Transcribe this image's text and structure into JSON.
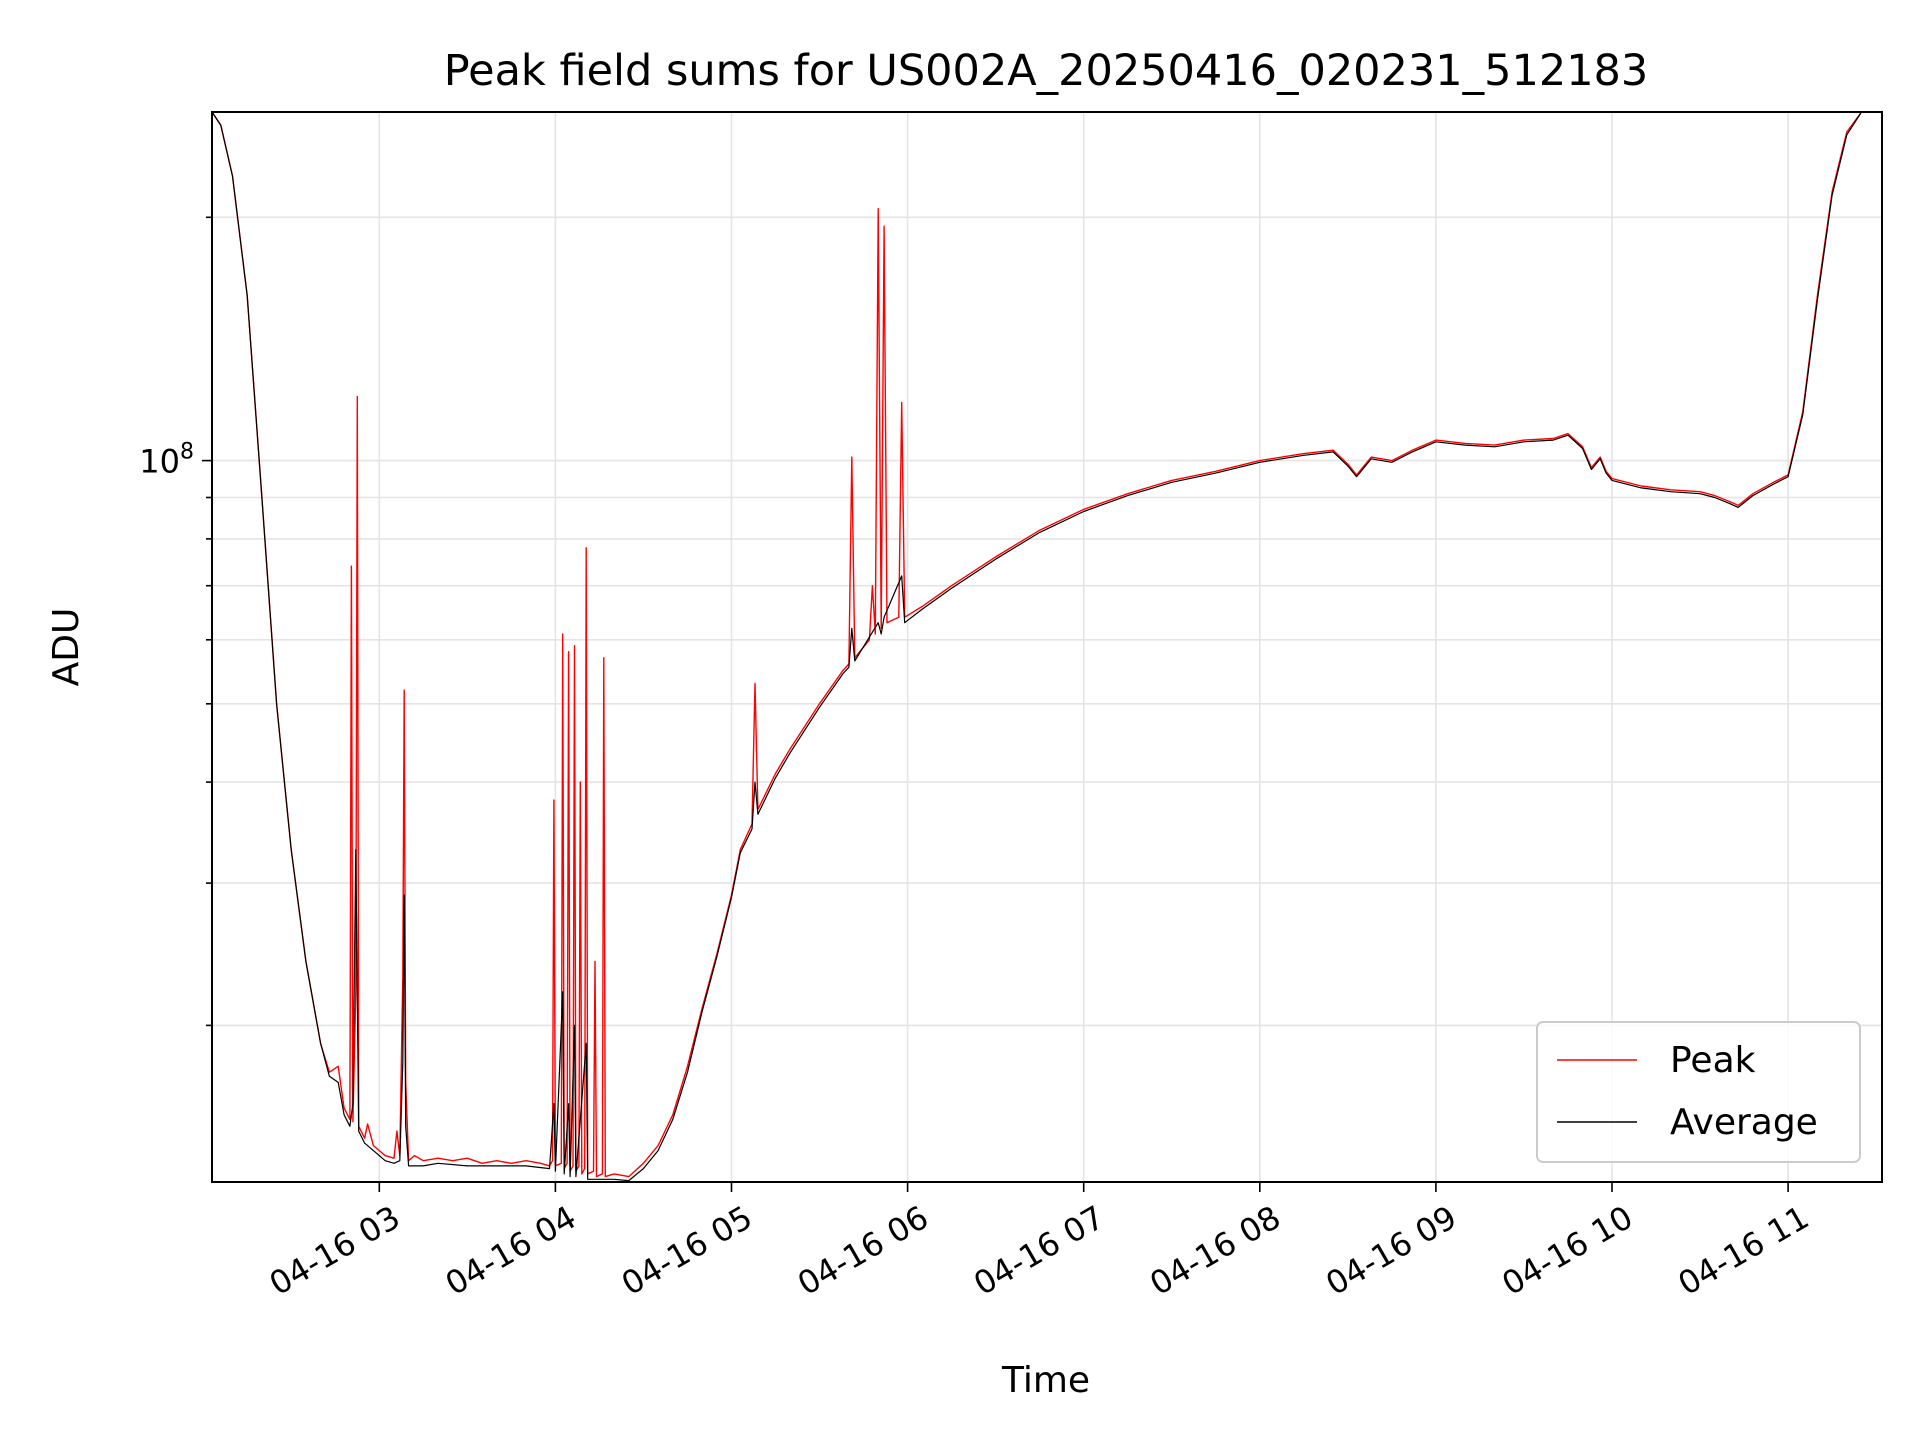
{
  "chart_data": {
    "type": "line",
    "title": "Peak field sums for US002A_20250416_020231_512183",
    "xlabel": "Time",
    "ylabel": "ADU",
    "y_scale": "log",
    "y_tick_label_base": "10",
    "y_tick_label_exp": "8",
    "y_major_tick": 100000000,
    "ylim": [
      12800000,
      270000000
    ],
    "xlim": [
      "2025-04-16 02:03",
      "2025-04-16 11:32"
    ],
    "x_ticks": [
      {
        "time": "2025-04-16 03:00",
        "label": "04-16 03"
      },
      {
        "time": "2025-04-16 04:00",
        "label": "04-16 04"
      },
      {
        "time": "2025-04-16 05:00",
        "label": "04-16 05"
      },
      {
        "time": "2025-04-16 06:00",
        "label": "04-16 06"
      },
      {
        "time": "2025-04-16 07:00",
        "label": "04-16 07"
      },
      {
        "time": "2025-04-16 08:00",
        "label": "04-16 08"
      },
      {
        "time": "2025-04-16 09:00",
        "label": "04-16 09"
      },
      {
        "time": "2025-04-16 10:00",
        "label": "04-16 10"
      },
      {
        "time": "2025-04-16 11:00",
        "label": "04-16 11"
      }
    ],
    "grid": true,
    "legend_position": "lower-right",
    "series": [
      {
        "name": "Peak",
        "color": "#ff0000",
        "points": [
          [
            "02:03",
            270000000
          ],
          [
            "02:06",
            260000000
          ],
          [
            "02:10",
            225000000
          ],
          [
            "02:15",
            160000000
          ],
          [
            "02:20",
            90000000
          ],
          [
            "02:25",
            50000000
          ],
          [
            "02:30",
            33000000
          ],
          [
            "02:35",
            24000000
          ],
          [
            "02:40",
            19000000
          ],
          [
            "02:43",
            17500000
          ],
          [
            "02:46",
            17800000
          ],
          [
            "02:48",
            15800000
          ],
          [
            "02:50",
            15300000
          ],
          [
            "02:50.5",
            74000000
          ],
          [
            "02:51",
            15200000
          ],
          [
            "02:52",
            22000000
          ],
          [
            "02:52.5",
            120000000
          ],
          [
            "02:53",
            15000000
          ],
          [
            "02:55",
            14500000
          ],
          [
            "02:56",
            15100000
          ],
          [
            "02:58",
            14200000
          ],
          [
            "03:02",
            13800000
          ],
          [
            "03:05",
            13700000
          ],
          [
            "03:06",
            14800000
          ],
          [
            "03:07",
            13800000
          ],
          [
            "03:08",
            23000000
          ],
          [
            "03:08.5",
            52000000
          ],
          [
            "03:09",
            17000000
          ],
          [
            "03:10",
            13600000
          ],
          [
            "03:12",
            13800000
          ],
          [
            "03:15",
            13600000
          ],
          [
            "03:20",
            13700000
          ],
          [
            "03:25",
            13600000
          ],
          [
            "03:30",
            13700000
          ],
          [
            "03:35",
            13500000
          ],
          [
            "03:40",
            13600000
          ],
          [
            "03:45",
            13500000
          ],
          [
            "03:50",
            13600000
          ],
          [
            "03:55",
            13500000
          ],
          [
            "03:58",
            13400000
          ],
          [
            "03:59",
            13600000
          ],
          [
            "03:59.5",
            38000000
          ],
          [
            "04:00",
            13400000
          ],
          [
            "04:02",
            13500000
          ],
          [
            "04:02.5",
            61000000
          ],
          [
            "04:03",
            13300000
          ],
          [
            "04:04",
            13500000
          ],
          [
            "04:04.5",
            58000000
          ],
          [
            "04:05",
            13200000
          ],
          [
            "04:06",
            13400000
          ],
          [
            "04:06.5",
            59000000
          ],
          [
            "04:07",
            13200000
          ],
          [
            "04:08",
            13400000
          ],
          [
            "04:08.5",
            40000000
          ],
          [
            "04:09",
            13100000
          ],
          [
            "04:10",
            13300000
          ],
          [
            "04:10.5",
            78000000
          ],
          [
            "04:11",
            13100000
          ],
          [
            "04:13",
            13200000
          ],
          [
            "04:13.5",
            24000000
          ],
          [
            "04:14",
            13000000
          ],
          [
            "04:16",
            13100000
          ],
          [
            "04:16.5",
            57000000
          ],
          [
            "04:17",
            13000000
          ],
          [
            "04:20",
            13100000
          ],
          [
            "04:25",
            13000000
          ],
          [
            "04:30",
            13500000
          ],
          [
            "04:35",
            14200000
          ],
          [
            "04:40",
            15500000
          ],
          [
            "04:45",
            17800000
          ],
          [
            "04:50",
            21000000
          ],
          [
            "04:55",
            24500000
          ],
          [
            "05:00",
            29000000
          ],
          [
            "05:03",
            33000000
          ],
          [
            "05:07",
            35500000
          ],
          [
            "05:08",
            53000000
          ],
          [
            "05:09",
            37000000
          ],
          [
            "05:15",
            41000000
          ],
          [
            "05:20",
            44000000
          ],
          [
            "05:30",
            50000000
          ],
          [
            "05:38",
            55000000
          ],
          [
            "05:40",
            56000000
          ],
          [
            "05:41",
            101000000
          ],
          [
            "05:42",
            57000000
          ],
          [
            "05:47",
            60000000
          ],
          [
            "05:48",
            70000000
          ],
          [
            "05:49",
            61000000
          ],
          [
            "05:50",
            205000000
          ],
          [
            "05:51",
            62000000
          ],
          [
            "05:52",
            195000000
          ],
          [
            "05:53",
            63000000
          ],
          [
            "05:57",
            64000000
          ],
          [
            "05:58",
            118000000
          ],
          [
            "05:59",
            64000000
          ],
          [
            "06:05",
            66000000
          ],
          [
            "06:15",
            70000000
          ],
          [
            "06:30",
            76000000
          ],
          [
            "06:45",
            82000000
          ],
          [
            "07:00",
            87000000
          ],
          [
            "07:15",
            91000000
          ],
          [
            "07:30",
            94500000
          ],
          [
            "07:45",
            97000000
          ],
          [
            "08:00",
            100000000
          ],
          [
            "08:15",
            102000000
          ],
          [
            "08:25",
            103000000
          ],
          [
            "08:30",
            99000000
          ],
          [
            "08:33",
            96000000
          ],
          [
            "08:38",
            101000000
          ],
          [
            "08:45",
            100000000
          ],
          [
            "08:52",
            103000000
          ],
          [
            "09:00",
            106000000
          ],
          [
            "09:10",
            105000000
          ],
          [
            "09:20",
            104500000
          ],
          [
            "09:30",
            106000000
          ],
          [
            "09:40",
            106500000
          ],
          [
            "09:45",
            108000000
          ],
          [
            "09:50",
            104000000
          ],
          [
            "09:53",
            98000000
          ],
          [
            "09:56",
            101000000
          ],
          [
            "09:58",
            97000000
          ],
          [
            "10:00",
            95000000
          ],
          [
            "10:10",
            93000000
          ],
          [
            "10:20",
            92000000
          ],
          [
            "10:30",
            91500000
          ],
          [
            "10:35",
            90500000
          ],
          [
            "10:40",
            89000000
          ],
          [
            "10:43",
            88000000
          ],
          [
            "10:48",
            91000000
          ],
          [
            "10:55",
            94000000
          ],
          [
            "11:00",
            96000000
          ],
          [
            "11:05",
            115000000
          ],
          [
            "11:10",
            160000000
          ],
          [
            "11:15",
            215000000
          ],
          [
            "11:20",
            255000000
          ],
          [
            "11:25",
            270000000
          ],
          [
            "11:32",
            270000000
          ]
        ]
      },
      {
        "name": "Average",
        "color": "#000000",
        "points": [
          [
            "02:03",
            270000000
          ],
          [
            "02:06",
            260000000
          ],
          [
            "02:10",
            225000000
          ],
          [
            "02:15",
            160000000
          ],
          [
            "02:20",
            90000000
          ],
          [
            "02:25",
            50000000
          ],
          [
            "02:30",
            33000000
          ],
          [
            "02:35",
            24000000
          ],
          [
            "02:40",
            19000000
          ],
          [
            "02:43",
            17300000
          ],
          [
            "02:46",
            17000000
          ],
          [
            "02:48",
            15500000
          ],
          [
            "02:50",
            15000000
          ],
          [
            "02:51",
            16000000
          ],
          [
            "02:52",
            33000000
          ],
          [
            "02:53",
            14800000
          ],
          [
            "02:55",
            14300000
          ],
          [
            "02:58",
            14000000
          ],
          [
            "03:02",
            13600000
          ],
          [
            "03:05",
            13500000
          ],
          [
            "03:07",
            13600000
          ],
          [
            "03:08",
            18000000
          ],
          [
            "03:08.5",
            29000000
          ],
          [
            "03:09",
            15000000
          ],
          [
            "03:10",
            13400000
          ],
          [
            "03:15",
            13400000
          ],
          [
            "03:20",
            13500000
          ],
          [
            "03:30",
            13400000
          ],
          [
            "03:40",
            13400000
          ],
          [
            "03:50",
            13400000
          ],
          [
            "03:58",
            13300000
          ],
          [
            "03:59.5",
            16000000
          ],
          [
            "04:00",
            13200000
          ],
          [
            "04:02.5",
            22000000
          ],
          [
            "04:03",
            13100000
          ],
          [
            "04:04.5",
            16000000
          ],
          [
            "04:05",
            13000000
          ],
          [
            "04:06.5",
            20000000
          ],
          [
            "04:07",
            13000000
          ],
          [
            "04:10.5",
            19000000
          ],
          [
            "04:11",
            12900000
          ],
          [
            "04:15",
            12900000
          ],
          [
            "04:20",
            12900000
          ],
          [
            "04:25",
            12850000
          ],
          [
            "04:30",
            13300000
          ],
          [
            "04:35",
            14000000
          ],
          [
            "04:40",
            15300000
          ],
          [
            "04:45",
            17500000
          ],
          [
            "04:50",
            20800000
          ],
          [
            "04:55",
            24300000
          ],
          [
            "05:00",
            28800000
          ],
          [
            "05:03",
            32700000
          ],
          [
            "05:07",
            35000000
          ],
          [
            "05:08",
            40000000
          ],
          [
            "05:09",
            36500000
          ],
          [
            "05:15",
            40500000
          ],
          [
            "05:20",
            43500000
          ],
          [
            "05:30",
            49500000
          ],
          [
            "05:38",
            54500000
          ],
          [
            "05:40",
            55500000
          ],
          [
            "05:41",
            62000000
          ],
          [
            "05:42",
            56500000
          ],
          [
            "05:50",
            63000000
          ],
          [
            "05:51",
            61000000
          ],
          [
            "05:52",
            64000000
          ],
          [
            "05:58",
            72000000
          ],
          [
            "05:59",
            63000000
          ],
          [
            "06:05",
            65500000
          ],
          [
            "06:15",
            69500000
          ],
          [
            "06:30",
            75500000
          ],
          [
            "06:45",
            81500000
          ],
          [
            "07:00",
            86500000
          ],
          [
            "07:15",
            90500000
          ],
          [
            "07:30",
            94000000
          ],
          [
            "07:45",
            96500000
          ],
          [
            "08:00",
            99500000
          ],
          [
            "08:15",
            101500000
          ],
          [
            "08:25",
            102500000
          ],
          [
            "08:30",
            98500000
          ],
          [
            "08:33",
            95500000
          ],
          [
            "08:38",
            100500000
          ],
          [
            "08:45",
            99500000
          ],
          [
            "08:52",
            102500000
          ],
          [
            "09:00",
            105500000
          ],
          [
            "09:10",
            104500000
          ],
          [
            "09:20",
            104000000
          ],
          [
            "09:30",
            105500000
          ],
          [
            "09:40",
            106000000
          ],
          [
            "09:45",
            107500000
          ],
          [
            "09:50",
            103500000
          ],
          [
            "09:53",
            97500000
          ],
          [
            "09:56",
            100500000
          ],
          [
            "09:58",
            96500000
          ],
          [
            "10:00",
            94500000
          ],
          [
            "10:10",
            92500000
          ],
          [
            "10:20",
            91500000
          ],
          [
            "10:30",
            91000000
          ],
          [
            "10:35",
            90000000
          ],
          [
            "10:40",
            88500000
          ],
          [
            "10:43",
            87500000
          ],
          [
            "10:48",
            90500000
          ],
          [
            "10:55",
            93500000
          ],
          [
            "11:00",
            95500000
          ],
          [
            "11:05",
            114000000
          ],
          [
            "11:10",
            158000000
          ],
          [
            "11:15",
            213000000
          ],
          [
            "11:20",
            253000000
          ],
          [
            "11:25",
            270000000
          ],
          [
            "11:32",
            270000000
          ]
        ]
      }
    ]
  }
}
